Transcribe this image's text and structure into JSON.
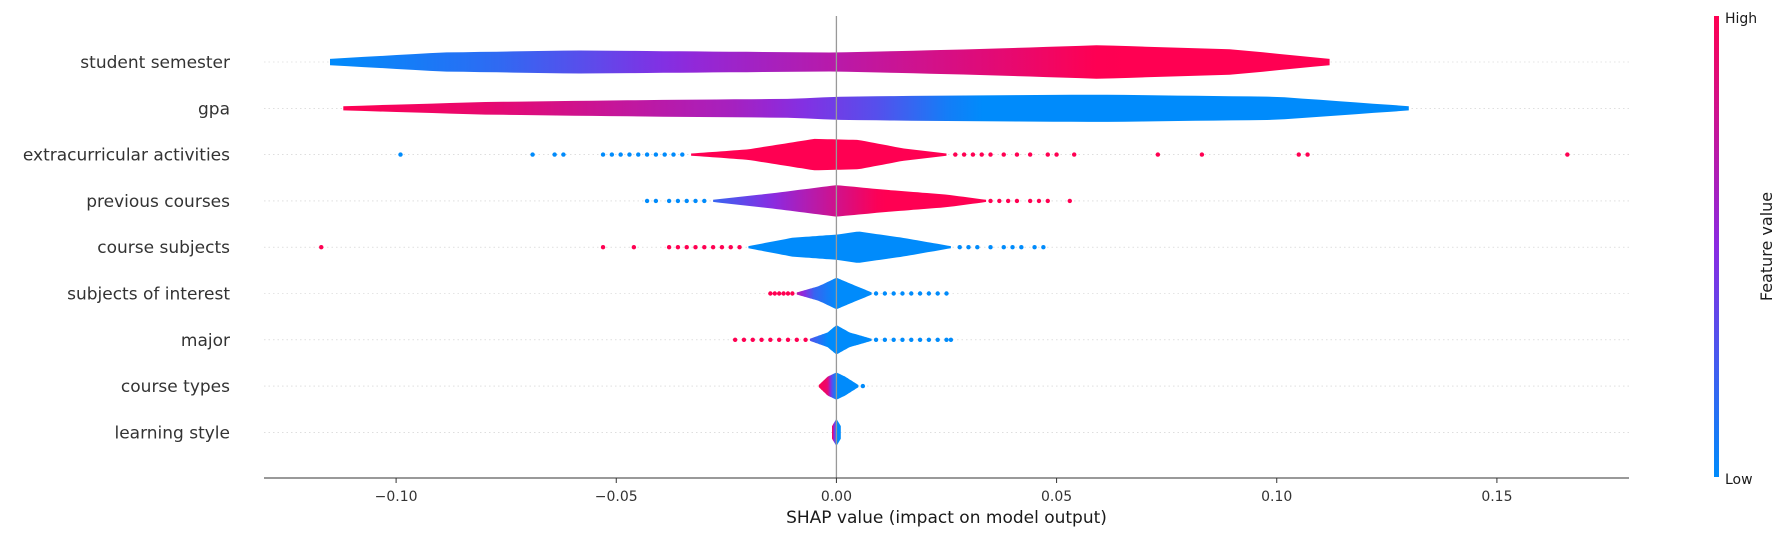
{
  "chart_data": {
    "type": "violin",
    "xlabel": "SHAP value (impact on model output)",
    "xlim": [
      -0.13,
      0.18
    ],
    "xticks": [
      -0.1,
      -0.05,
      0.0,
      0.05,
      0.1,
      0.15
    ],
    "xtick_labels": [
      "−0.10",
      "−0.05",
      "0.00",
      "0.05",
      "0.10",
      "0.15"
    ],
    "colorbar": {
      "title": "Feature value",
      "high_label": "High",
      "low_label": "Low",
      "low_color": "#008bfb",
      "mid_color": "#8a2be2",
      "high_color": "#ff0052"
    },
    "grid": "horizontal dotted",
    "features": [
      {
        "name": "student semester",
        "range": [
          -0.115,
          0.112
        ],
        "widths": [
          [
            -0.115,
            0.15
          ],
          [
            -0.09,
            0.45
          ],
          [
            -0.06,
            0.55
          ],
          [
            -0.03,
            0.5
          ],
          [
            0.0,
            0.45
          ],
          [
            0.03,
            0.6
          ],
          [
            0.06,
            0.8
          ],
          [
            0.09,
            0.6
          ],
          [
            0.112,
            0.15
          ]
        ],
        "colors": [
          [
            -0.115,
            0.0
          ],
          [
            -0.08,
            0.15
          ],
          [
            -0.06,
            0.3
          ],
          [
            -0.03,
            0.55
          ],
          [
            0.0,
            0.7
          ],
          [
            0.03,
            0.85
          ],
          [
            0.06,
            1.0
          ],
          [
            0.112,
            1.0
          ]
        ],
        "dots": []
      },
      {
        "name": "gpa",
        "range": [
          -0.112,
          0.13
        ],
        "widths": [
          [
            -0.112,
            0.1
          ],
          [
            -0.08,
            0.3
          ],
          [
            -0.04,
            0.4
          ],
          [
            -0.01,
            0.45
          ],
          [
            0.0,
            0.55
          ],
          [
            0.02,
            0.6
          ],
          [
            0.06,
            0.65
          ],
          [
            0.1,
            0.55
          ],
          [
            0.13,
            0.1
          ]
        ],
        "colors": [
          [
            -0.112,
            1.0
          ],
          [
            -0.08,
            0.9
          ],
          [
            -0.05,
            0.75
          ],
          [
            -0.02,
            0.6
          ],
          [
            0.0,
            0.4
          ],
          [
            0.01,
            0.3
          ],
          [
            0.03,
            0.0
          ],
          [
            0.13,
            0.0
          ]
        ],
        "dots": []
      },
      {
        "name": "extracurricular activities",
        "range": [
          -0.033,
          0.025
        ],
        "widths": [
          [
            -0.033,
            0.05
          ],
          [
            -0.02,
            0.25
          ],
          [
            -0.005,
            0.75
          ],
          [
            0.005,
            0.7
          ],
          [
            0.015,
            0.3
          ],
          [
            0.025,
            0.05
          ]
        ],
        "colors": [
          [
            -0.033,
            1.0
          ],
          [
            0.025,
            1.0
          ]
        ],
        "dots": [
          [
            -0.099,
            0
          ],
          [
            -0.069,
            0
          ],
          [
            -0.064,
            0
          ],
          [
            -0.062,
            0
          ],
          [
            -0.053,
            0
          ],
          [
            -0.051,
            0
          ],
          [
            -0.049,
            0
          ],
          [
            -0.047,
            0
          ],
          [
            -0.045,
            0
          ],
          [
            -0.043,
            0
          ],
          [
            -0.041,
            0
          ],
          [
            -0.039,
            0
          ],
          [
            -0.037,
            0
          ],
          [
            -0.035,
            0
          ],
          [
            0.027,
            1
          ],
          [
            0.029,
            1
          ],
          [
            0.031,
            1
          ],
          [
            0.033,
            1
          ],
          [
            0.035,
            1
          ],
          [
            0.038,
            1
          ],
          [
            0.041,
            1
          ],
          [
            0.044,
            1
          ],
          [
            0.048,
            1
          ],
          [
            0.05,
            1
          ],
          [
            0.054,
            1
          ],
          [
            0.073,
            1
          ],
          [
            0.083,
            1
          ],
          [
            0.105,
            1
          ],
          [
            0.107,
            1
          ],
          [
            0.166,
            1
          ]
        ]
      },
      {
        "name": "previous courses",
        "range": [
          -0.028,
          0.034
        ],
        "widths": [
          [
            -0.028,
            0.05
          ],
          [
            -0.015,
            0.35
          ],
          [
            0.0,
            0.75
          ],
          [
            0.01,
            0.55
          ],
          [
            0.025,
            0.3
          ],
          [
            0.034,
            0.05
          ]
        ],
        "colors": [
          [
            -0.028,
            0.2
          ],
          [
            -0.01,
            0.6
          ],
          [
            0.0,
            0.8
          ],
          [
            0.01,
            1.0
          ],
          [
            0.034,
            1.0
          ]
        ],
        "dots": [
          [
            -0.043,
            0
          ],
          [
            -0.041,
            0
          ],
          [
            -0.038,
            0
          ],
          [
            -0.036,
            0
          ],
          [
            -0.034,
            0
          ],
          [
            -0.032,
            0
          ],
          [
            -0.03,
            0
          ],
          [
            0.035,
            1
          ],
          [
            0.037,
            1
          ],
          [
            0.039,
            1
          ],
          [
            0.041,
            1
          ],
          [
            0.044,
            1
          ],
          [
            0.046,
            1
          ],
          [
            0.048,
            1
          ],
          [
            0.053,
            1
          ]
        ]
      },
      {
        "name": "course subjects",
        "range": [
          -0.02,
          0.026
        ],
        "widths": [
          [
            -0.02,
            0.05
          ],
          [
            -0.01,
            0.45
          ],
          [
            0.0,
            0.6
          ],
          [
            0.005,
            0.75
          ],
          [
            0.015,
            0.45
          ],
          [
            0.026,
            0.05
          ]
        ],
        "colors": [
          [
            -0.02,
            0.0
          ],
          [
            0.026,
            0.0
          ]
        ],
        "dots": [
          [
            -0.117,
            1
          ],
          [
            -0.053,
            1
          ],
          [
            -0.046,
            1
          ],
          [
            -0.038,
            1
          ],
          [
            -0.036,
            1
          ],
          [
            -0.034,
            1
          ],
          [
            -0.032,
            1
          ],
          [
            -0.03,
            1
          ],
          [
            -0.028,
            1
          ],
          [
            -0.026,
            1
          ],
          [
            -0.024,
            1
          ],
          [
            -0.022,
            1
          ],
          [
            0.028,
            0
          ],
          [
            0.03,
            0
          ],
          [
            0.032,
            0
          ],
          [
            0.035,
            0
          ],
          [
            0.038,
            0
          ],
          [
            0.04,
            0
          ],
          [
            0.042,
            0
          ],
          [
            0.045,
            0
          ],
          [
            0.047,
            0
          ]
        ]
      },
      {
        "name": "subjects of interest",
        "range": [
          -0.009,
          0.008
        ],
        "widths": [
          [
            -0.009,
            0.05
          ],
          [
            -0.004,
            0.35
          ],
          [
            0.0,
            0.75
          ],
          [
            0.004,
            0.4
          ],
          [
            0.008,
            0.05
          ]
        ],
        "colors": [
          [
            -0.009,
            0.7
          ],
          [
            -0.005,
            0.2
          ],
          [
            0.0,
            0.0
          ],
          [
            0.008,
            0.0
          ]
        ],
        "dots": [
          [
            -0.015,
            1
          ],
          [
            -0.014,
            1
          ],
          [
            -0.013,
            1
          ],
          [
            -0.012,
            1
          ],
          [
            -0.011,
            1
          ],
          [
            -0.01,
            1
          ],
          [
            0.009,
            0
          ],
          [
            0.011,
            0
          ],
          [
            0.013,
            0
          ],
          [
            0.015,
            0
          ],
          [
            0.017,
            0
          ],
          [
            0.019,
            0
          ],
          [
            0.021,
            0
          ],
          [
            0.023,
            0
          ],
          [
            0.025,
            0
          ]
        ]
      },
      {
        "name": "major",
        "range": [
          -0.006,
          0.008
        ],
        "widths": [
          [
            -0.006,
            0.05
          ],
          [
            -0.002,
            0.35
          ],
          [
            0.0,
            0.7
          ],
          [
            0.003,
            0.35
          ],
          [
            0.008,
            0.05
          ]
        ],
        "colors": [
          [
            -0.006,
            0.3
          ],
          [
            -0.002,
            0.0
          ],
          [
            0.008,
            0.0
          ]
        ],
        "dots": [
          [
            -0.023,
            1
          ],
          [
            -0.021,
            1
          ],
          [
            -0.019,
            1
          ],
          [
            -0.017,
            1
          ],
          [
            -0.015,
            1
          ],
          [
            -0.013,
            1
          ],
          [
            -0.011,
            1
          ],
          [
            -0.009,
            1
          ],
          [
            -0.007,
            1
          ],
          [
            0.009,
            0
          ],
          [
            0.011,
            0
          ],
          [
            0.013,
            0
          ],
          [
            0.015,
            0
          ],
          [
            0.017,
            0
          ],
          [
            0.019,
            0
          ],
          [
            0.021,
            0
          ],
          [
            0.023,
            0
          ],
          [
            0.025,
            0
          ],
          [
            0.026,
            0
          ]
        ]
      },
      {
        "name": "course types",
        "range": [
          -0.004,
          0.005
        ],
        "widths": [
          [
            -0.004,
            0.05
          ],
          [
            -0.002,
            0.45
          ],
          [
            0.0,
            0.65
          ],
          [
            0.002,
            0.45
          ],
          [
            0.005,
            0.05
          ]
        ],
        "colors": [
          [
            -0.004,
            1.0
          ],
          [
            -0.002,
            0.9
          ],
          [
            -0.001,
            0.3
          ],
          [
            0.0,
            0.0
          ],
          [
            0.005,
            0.0
          ]
        ],
        "dots": [
          [
            0.006,
            0
          ]
        ]
      },
      {
        "name": "learning style",
        "range": [
          -0.001,
          0.001
        ],
        "widths": [
          [
            -0.001,
            0.3
          ],
          [
            0.0,
            0.65
          ],
          [
            0.001,
            0.3
          ]
        ],
        "colors": [
          [
            -0.001,
            1.0
          ],
          [
            0.0,
            0.0
          ],
          [
            0.001,
            0.0
          ]
        ],
        "dots": []
      }
    ]
  }
}
